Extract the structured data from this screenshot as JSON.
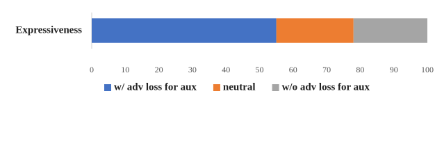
{
  "chart_data": {
    "type": "bar",
    "orientation": "horizontal",
    "stacked": true,
    "categories": [
      "Expressiveness"
    ],
    "series": [
      {
        "name": "w/ adv loss for aux",
        "color": "#4472c4",
        "values": [
          55
        ]
      },
      {
        "name": "neutral",
        "color": "#ed7d31",
        "values": [
          23
        ]
      },
      {
        "name": "w/o adv loss for aux",
        "color": "#a5a5a5",
        "values": [
          22
        ]
      }
    ],
    "xlim": [
      0,
      100
    ],
    "xticks": [
      0,
      10,
      20,
      30,
      40,
      50,
      60,
      70,
      80,
      90,
      100
    ],
    "grid": false,
    "legend": "bottom"
  }
}
